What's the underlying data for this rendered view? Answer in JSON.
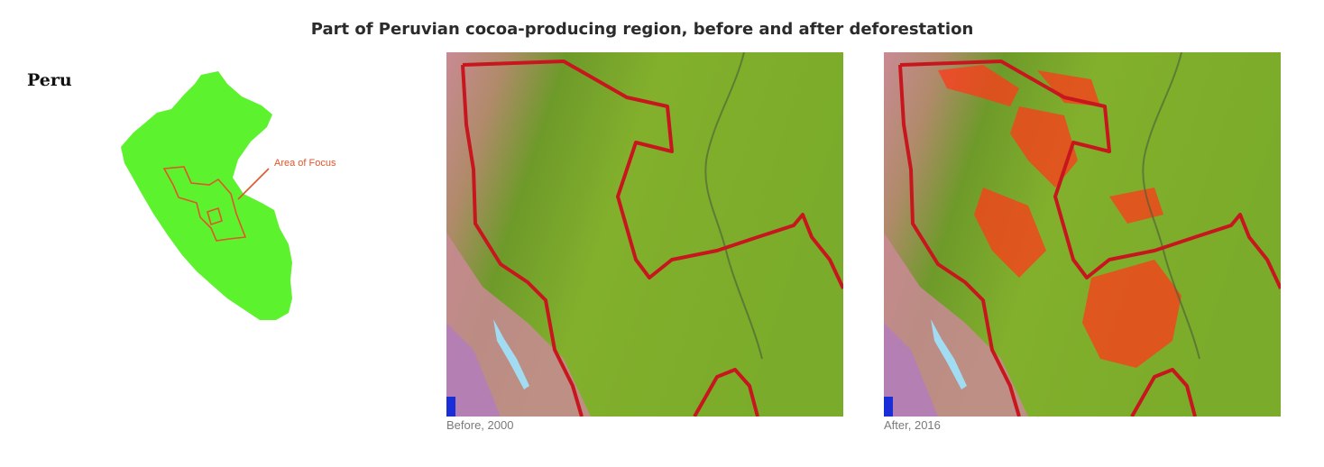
{
  "title": "Part of Peruvian cocoa-producing region, before and after deforestation",
  "inset_map": {
    "country_label": "Peru",
    "focus_label": "Area of Focus",
    "country_color": "#5cf22e",
    "focus_outline_color": "#e0562a"
  },
  "panels": [
    {
      "caption": "Before, 2000",
      "state": "before"
    },
    {
      "caption": "After, 2016",
      "state": "after"
    }
  ],
  "colors": {
    "forest": "#76a92a",
    "boundary": "#c8161f",
    "deforestation": "#ff3a1a",
    "mountains": "#c98a94",
    "glacier": "#9fe4ff",
    "water": "#1a2ed8"
  }
}
